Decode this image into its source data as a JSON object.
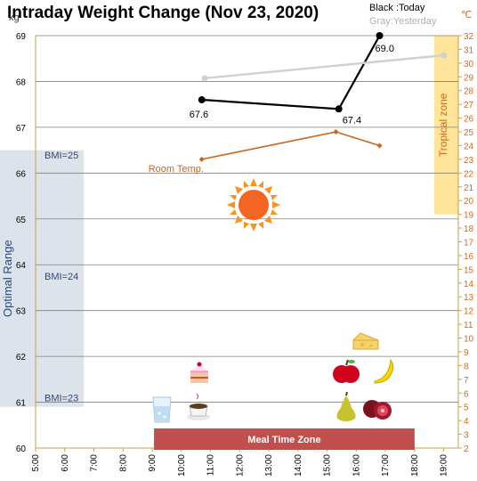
{
  "chart_data": {
    "type": "line",
    "title": "Intraday Weight Change (Nov 23, 2020)",
    "y_unit": "kg",
    "y2_unit": "℃",
    "ylim": [
      60,
      69
    ],
    "y_ticks": [
      "60",
      "61",
      "62",
      "63",
      "64",
      "65",
      "66",
      "67",
      "68",
      "69"
    ],
    "y2lim": [
      2,
      32
    ],
    "y2_ticks": [
      "2",
      "3",
      "4",
      "5",
      "6",
      "7",
      "8",
      "9",
      "10",
      "11",
      "12",
      "13",
      "14",
      "15",
      "16",
      "17",
      "18",
      "19",
      "20",
      "21",
      "22",
      "23",
      "24",
      "25",
      "26",
      "27",
      "28",
      "29",
      "30",
      "31",
      "32"
    ],
    "xlim": [
      5,
      19.5
    ],
    "x_ticks": [
      {
        "v": 5,
        "label": "5:00"
      },
      {
        "v": 6,
        "label": "6:00"
      },
      {
        "v": 7,
        "label": "7:00"
      },
      {
        "v": 8,
        "label": "8:00"
      },
      {
        "v": 9,
        "label": "9:00"
      },
      {
        "v": 10,
        "label": "10:00"
      },
      {
        "v": 11,
        "label": "11:00"
      },
      {
        "v": 12,
        "label": "12:00"
      },
      {
        "v": 13,
        "label": "13:00"
      },
      {
        "v": 14,
        "label": "14:00"
      },
      {
        "v": 15,
        "label": "15:00"
      },
      {
        "v": 16,
        "label": "16:00"
      },
      {
        "v": 17,
        "label": "17:00"
      },
      {
        "v": 18,
        "label": "18:00"
      },
      {
        "v": 19,
        "label": "19:00"
      }
    ],
    "legend": {
      "today": "Black :Today",
      "yesterday": "Gray:Yesterday"
    },
    "series": [
      {
        "name": "Today",
        "color": "#000000",
        "axis": "kg",
        "points": [
          {
            "x": 10.7,
            "y": 67.6,
            "label": "67.6"
          },
          {
            "x": 15.4,
            "y": 67.4,
            "label": "67.4"
          },
          {
            "x": 16.8,
            "y": 69.0,
            "label": "69.0"
          }
        ]
      },
      {
        "name": "Yesterday",
        "color": "#d0d0d0",
        "axis": "kg",
        "points": [
          {
            "x": 10.8,
            "y": 68.07
          },
          {
            "x": 19.0,
            "y": 68.57
          }
        ]
      },
      {
        "name": "Room Temp.",
        "color": "#c8651b",
        "axis": "celsius",
        "points": [
          {
            "x": 10.7,
            "y": 23
          },
          {
            "x": 15.3,
            "y": 25
          },
          {
            "x": 16.8,
            "y": 24
          }
        ]
      }
    ],
    "bands": {
      "optimal": {
        "label": "Optimal Range",
        "y": [
          60.9,
          66.5
        ],
        "color": "#dde3ea"
      },
      "tropical": {
        "label": "Tropical zone",
        "y2": [
          19,
          32
        ],
        "color": "#ffe599"
      },
      "meal": {
        "label": "Meal Time Zone",
        "x": [
          9,
          18
        ],
        "color": "#c0504d"
      }
    },
    "bmi_lines": [
      {
        "label": "BMI=25",
        "y": 66.4
      },
      {
        "label": "BMI=24",
        "y": 63.75
      },
      {
        "label": "BMI=23",
        "y": 61.1
      }
    ],
    "room_temp_label": "Room Temp.",
    "grid": true
  },
  "icons": {
    "sun": "sun-icon",
    "water": "water-glass-icon",
    "coffee": "coffee-cup-icon",
    "cake": "cake-icon",
    "cheese": "cheese-icon",
    "apple": "apple-icon",
    "banana": "banana-icon",
    "pear": "pear-icon",
    "pomegranate": "pomegranate-icon"
  }
}
